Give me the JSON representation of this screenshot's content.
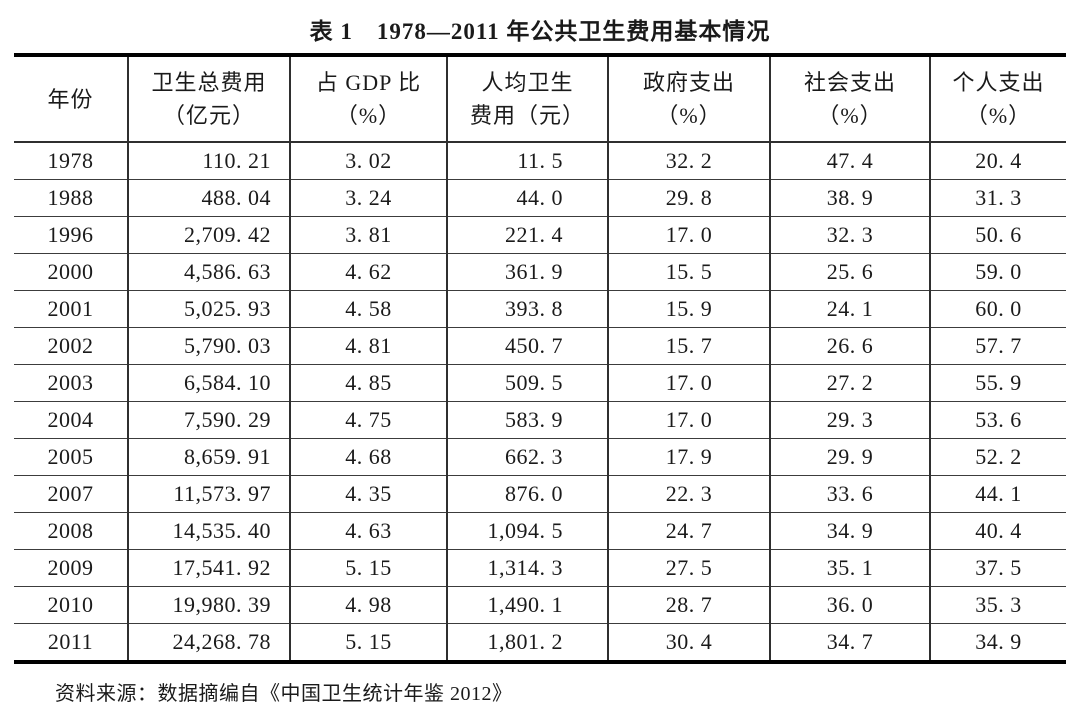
{
  "title": "表 1　1978—2011 年公共卫生费用基本情况",
  "source_note": "资料来源：数据摘编自《中国卫生统计年鉴 2012》",
  "table": {
    "columns": [
      {
        "id": "year",
        "line1": "年份",
        "line2": ""
      },
      {
        "id": "total",
        "line1": "卫生总费用",
        "line2": "（亿元）"
      },
      {
        "id": "gdp_pct",
        "line1": "占 GDP 比",
        "line2": "（%）"
      },
      {
        "id": "per_capita",
        "line1": "人均卫生",
        "line2": "费用（元）"
      },
      {
        "id": "gov_pct",
        "line1": "政府支出",
        "line2": "（%）"
      },
      {
        "id": "social_pct",
        "line1": "社会支出",
        "line2": "（%）"
      },
      {
        "id": "personal_pct",
        "line1": "个人支出",
        "line2": "（%）"
      }
    ],
    "rows": [
      {
        "year": "1978",
        "total": "110. 21",
        "gdp_pct": "3. 02",
        "per_capita": "11. 5",
        "gov_pct": "32. 2",
        "social_pct": "47. 4",
        "personal_pct": "20. 4"
      },
      {
        "year": "1988",
        "total": "488. 04",
        "gdp_pct": "3. 24",
        "per_capita": "44. 0",
        "gov_pct": "29. 8",
        "social_pct": "38. 9",
        "personal_pct": "31. 3"
      },
      {
        "year": "1996",
        "total": "2,709. 42",
        "gdp_pct": "3. 81",
        "per_capita": "221. 4",
        "gov_pct": "17. 0",
        "social_pct": "32. 3",
        "personal_pct": "50. 6"
      },
      {
        "year": "2000",
        "total": "4,586. 63",
        "gdp_pct": "4. 62",
        "per_capita": "361. 9",
        "gov_pct": "15. 5",
        "social_pct": "25. 6",
        "personal_pct": "59. 0"
      },
      {
        "year": "2001",
        "total": "5,025. 93",
        "gdp_pct": "4. 58",
        "per_capita": "393. 8",
        "gov_pct": "15. 9",
        "social_pct": "24. 1",
        "personal_pct": "60. 0"
      },
      {
        "year": "2002",
        "total": "5,790. 03",
        "gdp_pct": "4. 81",
        "per_capita": "450. 7",
        "gov_pct": "15. 7",
        "social_pct": "26. 6",
        "personal_pct": "57. 7"
      },
      {
        "year": "2003",
        "total": "6,584. 10",
        "gdp_pct": "4. 85",
        "per_capita": "509. 5",
        "gov_pct": "17. 0",
        "social_pct": "27. 2",
        "personal_pct": "55. 9"
      },
      {
        "year": "2004",
        "total": "7,590. 29",
        "gdp_pct": "4. 75",
        "per_capita": "583. 9",
        "gov_pct": "17. 0",
        "social_pct": "29. 3",
        "personal_pct": "53. 6"
      },
      {
        "year": "2005",
        "total": "8,659. 91",
        "gdp_pct": "4. 68",
        "per_capita": "662. 3",
        "gov_pct": "17. 9",
        "social_pct": "29. 9",
        "personal_pct": "52. 2"
      },
      {
        "year": "2007",
        "total": "11,573. 97",
        "gdp_pct": "4. 35",
        "per_capita": "876. 0",
        "gov_pct": "22. 3",
        "social_pct": "33. 6",
        "personal_pct": "44. 1"
      },
      {
        "year": "2008",
        "total": "14,535. 40",
        "gdp_pct": "4. 63",
        "per_capita": "1,094. 5",
        "gov_pct": "24. 7",
        "social_pct": "34. 9",
        "personal_pct": "40. 4"
      },
      {
        "year": "2009",
        "total": "17,541. 92",
        "gdp_pct": "5. 15",
        "per_capita": "1,314. 3",
        "gov_pct": "27. 5",
        "social_pct": "35. 1",
        "personal_pct": "37. 5"
      },
      {
        "year": "2010",
        "total": "19,980. 39",
        "gdp_pct": "4. 98",
        "per_capita": "1,490. 1",
        "gov_pct": "28. 7",
        "social_pct": "36. 0",
        "personal_pct": "35. 3"
      },
      {
        "year": "2011",
        "total": "24,268. 78",
        "gdp_pct": "5. 15",
        "per_capita": "1,801. 2",
        "gov_pct": "30. 4",
        "social_pct": "34. 7",
        "personal_pct": "34. 9"
      }
    ]
  }
}
